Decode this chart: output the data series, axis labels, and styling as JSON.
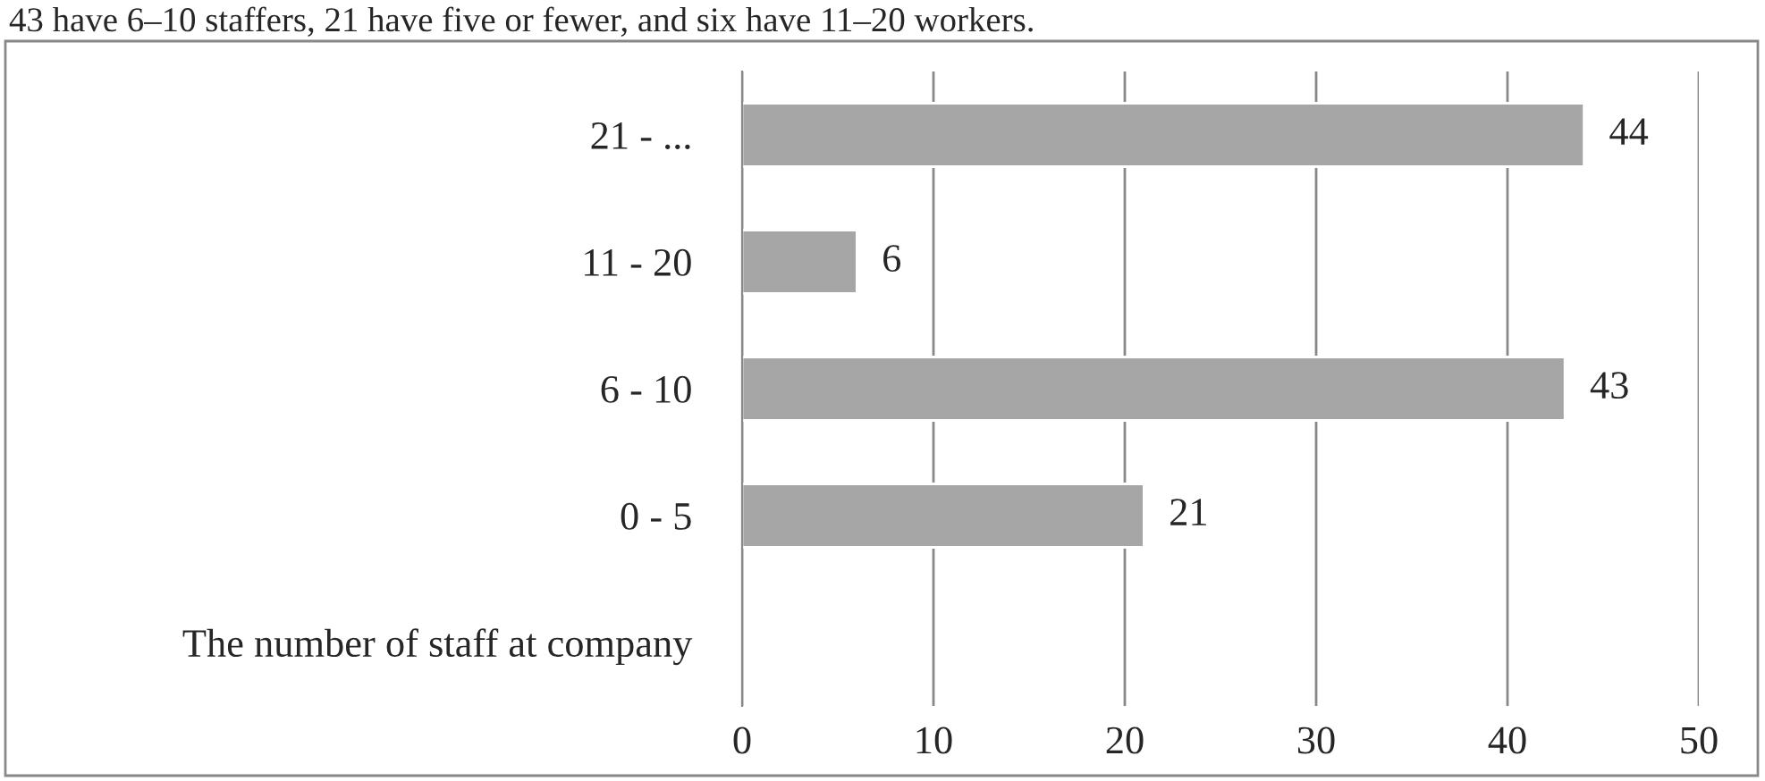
{
  "chart_data": {
    "type": "bar",
    "orientation": "horizontal",
    "categories": [
      "21 - ...",
      "11 - 20",
      "6 - 10",
      "0 - 5",
      "The number of staff at company"
    ],
    "values": [
      44,
      6,
      43,
      21,
      null
    ],
    "color": "#a6a6a6",
    "xlim": [
      0,
      50
    ],
    "xticks": [
      0,
      10,
      20,
      30,
      40,
      50
    ],
    "grid": "x",
    "data_labels": true,
    "legend": false,
    "annotations": [
      "43 have 6–10 staffers, 21 have five or fewer, and six have 11–20 workers."
    ]
  }
}
